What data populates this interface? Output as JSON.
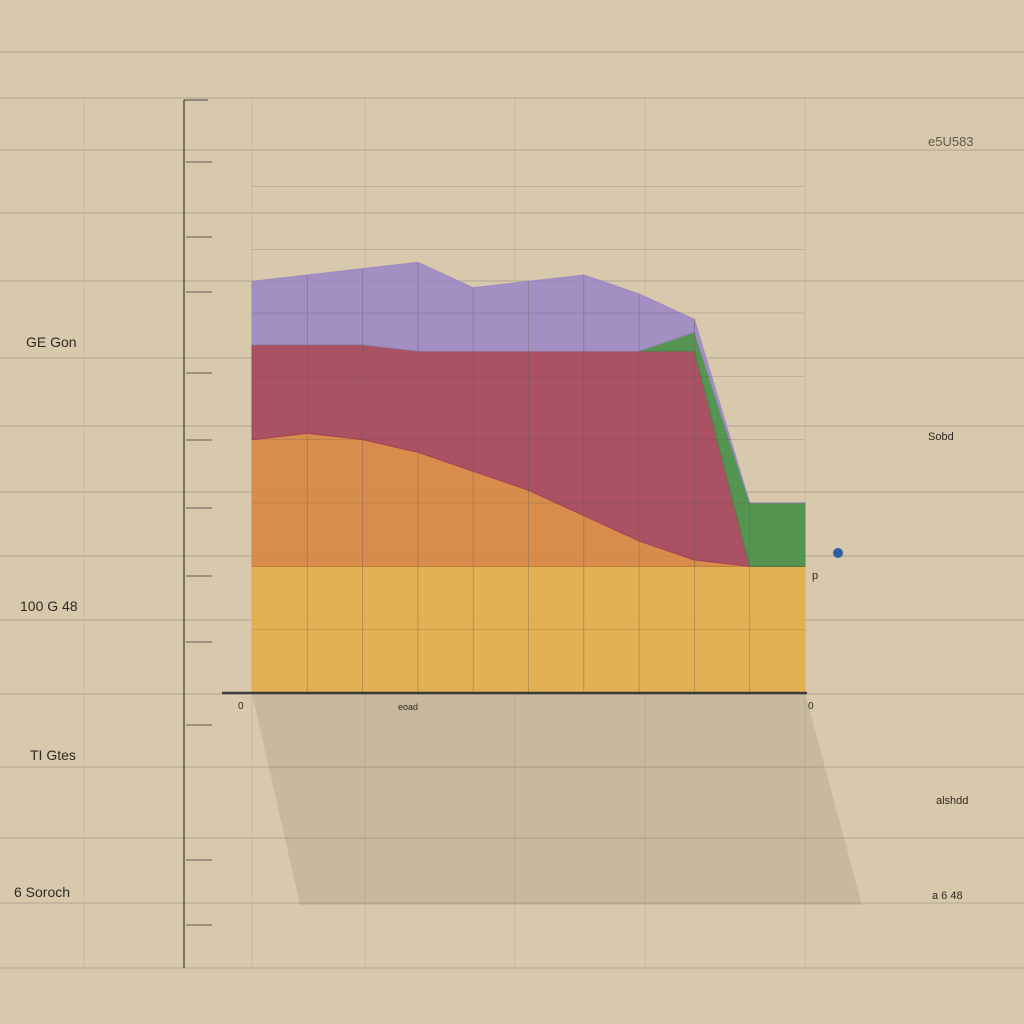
{
  "chart_data": {
    "type": "area",
    "stacked": true,
    "x": [
      0,
      1,
      2,
      3,
      4,
      5,
      6,
      7,
      8,
      9,
      10
    ],
    "series": [
      {
        "values": [
          2.0,
          2.0,
          2.0,
          2.0,
          2.0,
          2.0,
          2.0,
          2.0,
          2.0,
          2.0,
          2.0
        ],
        "color": "#e2ad45"
      },
      {
        "values": [
          2.0,
          2.1,
          2.0,
          1.8,
          1.5,
          1.2,
          0.8,
          0.4,
          0.1,
          0.0,
          0.0
        ],
        "color": "#d7833c"
      },
      {
        "values": [
          1.5,
          1.4,
          1.5,
          1.6,
          1.9,
          2.2,
          2.6,
          3.0,
          3.3,
          0.0,
          0.0
        ],
        "color": "#a23f58"
      },
      {
        "values": [
          0.0,
          0.0,
          0.0,
          0.0,
          0.0,
          0.0,
          0.0,
          0.0,
          0.3,
          1.0,
          1.0
        ],
        "color": "#3f8d42"
      },
      {
        "values": [
          1.0,
          1.1,
          1.2,
          1.4,
          1.0,
          1.1,
          1.2,
          0.9,
          0.2,
          0.0,
          0.0
        ],
        "color": "#9a86c6"
      }
    ],
    "ylim": [
      0,
      9
    ],
    "grid": true,
    "left_labels": [
      "GE Gon",
      "100 G 48",
      "TI Gtes",
      "6 Soroch"
    ],
    "right_labels": [
      "e5U583",
      "Sobd",
      "p",
      "alshdd",
      "a 6 48"
    ],
    "x_label": "eoad",
    "x_start_label": "0",
    "x_end_label": "0"
  },
  "colors": {
    "paper": "#d8c8ac",
    "grid": "#9f9688",
    "axis": "#3d3b3a",
    "marker": "#2f5fa3"
  }
}
